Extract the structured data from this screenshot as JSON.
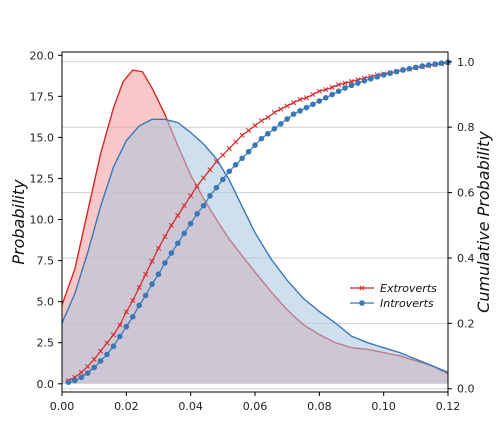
{
  "chart_data": {
    "type": "area",
    "title": "",
    "xlabel": "",
    "ylabel": "Probability",
    "y2label": "Cumulative Probability",
    "xlim": [
      0.0,
      0.12
    ],
    "ylim": [
      -0.5,
      20.2
    ],
    "y2lim": [
      -0.01,
      1.03
    ],
    "grid": "horizontal, right axis",
    "x_ticks": [
      "0.00",
      "0.02",
      "0.04",
      "0.06",
      "0.08",
      "0.10",
      "0.12"
    ],
    "y_ticks": [
      "0.0",
      "2.5",
      "5.0",
      "7.5",
      "10.0",
      "12.5",
      "15.0",
      "17.5",
      "20.0"
    ],
    "y2_ticks": [
      "0.0",
      "0.2",
      "0.4",
      "0.6",
      "0.8",
      "1.0"
    ],
    "legend": {
      "placement": "center-right",
      "entries": [
        "Extroverts",
        "Introverts"
      ]
    },
    "density_series": [
      {
        "name": "Extroverts",
        "color": "#d62728",
        "fill": "#f4a3a3",
        "points": [
          [
            0.0,
            4.8
          ],
          [
            0.004,
            7.0
          ],
          [
            0.008,
            10.5
          ],
          [
            0.012,
            14.0
          ],
          [
            0.016,
            16.8
          ],
          [
            0.019,
            18.4
          ],
          [
            0.022,
            19.1
          ],
          [
            0.025,
            19.0
          ],
          [
            0.028,
            18.0
          ],
          [
            0.032,
            16.4
          ],
          [
            0.036,
            14.5
          ],
          [
            0.04,
            12.7
          ],
          [
            0.044,
            11.3
          ],
          [
            0.048,
            10.0
          ],
          [
            0.052,
            8.8
          ],
          [
            0.056,
            7.8
          ],
          [
            0.06,
            6.8
          ],
          [
            0.065,
            5.6
          ],
          [
            0.07,
            4.5
          ],
          [
            0.075,
            3.6
          ],
          [
            0.08,
            3.0
          ],
          [
            0.085,
            2.5
          ],
          [
            0.09,
            2.2
          ],
          [
            0.095,
            2.1
          ],
          [
            0.1,
            1.9
          ],
          [
            0.105,
            1.7
          ],
          [
            0.11,
            1.4
          ],
          [
            0.115,
            1.1
          ],
          [
            0.12,
            0.6
          ]
        ]
      },
      {
        "name": "Introverts",
        "color": "#3a78b5",
        "fill": "#a9c4e0",
        "points": [
          [
            0.0,
            3.7
          ],
          [
            0.004,
            5.5
          ],
          [
            0.008,
            8.0
          ],
          [
            0.012,
            10.8
          ],
          [
            0.016,
            13.2
          ],
          [
            0.02,
            14.8
          ],
          [
            0.024,
            15.7
          ],
          [
            0.028,
            16.1
          ],
          [
            0.032,
            16.1
          ],
          [
            0.036,
            15.9
          ],
          [
            0.04,
            15.3
          ],
          [
            0.044,
            14.6
          ],
          [
            0.048,
            13.7
          ],
          [
            0.052,
            12.4
          ],
          [
            0.056,
            10.8
          ],
          [
            0.06,
            9.2
          ],
          [
            0.065,
            7.6
          ],
          [
            0.07,
            6.3
          ],
          [
            0.075,
            5.2
          ],
          [
            0.08,
            4.4
          ],
          [
            0.085,
            3.7
          ],
          [
            0.09,
            2.9
          ],
          [
            0.095,
            2.5
          ],
          [
            0.1,
            2.2
          ],
          [
            0.105,
            1.9
          ],
          [
            0.11,
            1.5
          ],
          [
            0.115,
            1.1
          ],
          [
            0.12,
            0.7
          ]
        ]
      }
    ],
    "cumulative_series": [
      {
        "name": "Extroverts",
        "color": "#d62728",
        "marker": "x",
        "x": [
          0.002,
          0.004,
          0.006,
          0.008,
          0.01,
          0.012,
          0.014,
          0.016,
          0.018,
          0.02,
          0.022,
          0.024,
          0.026,
          0.028,
          0.03,
          0.032,
          0.034,
          0.036,
          0.038,
          0.04,
          0.042,
          0.044,
          0.046,
          0.048,
          0.05,
          0.052,
          0.054,
          0.056,
          0.058,
          0.06,
          0.062,
          0.064,
          0.066,
          0.068,
          0.07,
          0.072,
          0.074,
          0.076,
          0.078,
          0.08,
          0.082,
          0.084,
          0.086,
          0.088,
          0.09,
          0.092,
          0.094,
          0.096,
          0.098,
          0.1,
          0.102,
          0.104,
          0.106,
          0.108,
          0.11,
          0.112,
          0.114,
          0.116,
          0.118,
          0.12
        ],
        "y": [
          0.025,
          0.035,
          0.05,
          0.068,
          0.09,
          0.115,
          0.14,
          0.165,
          0.195,
          0.235,
          0.27,
          0.31,
          0.35,
          0.39,
          0.43,
          0.465,
          0.5,
          0.53,
          0.56,
          0.59,
          0.62,
          0.645,
          0.67,
          0.695,
          0.715,
          0.735,
          0.755,
          0.775,
          0.79,
          0.805,
          0.82,
          0.83,
          0.845,
          0.855,
          0.865,
          0.875,
          0.885,
          0.89,
          0.9,
          0.91,
          0.915,
          0.922,
          0.93,
          0.935,
          0.94,
          0.945,
          0.95,
          0.955,
          0.96,
          0.963,
          0.967,
          0.97,
          0.975,
          0.978,
          0.982,
          0.985,
          0.988,
          0.991,
          0.994,
          0.997
        ]
      },
      {
        "name": "Introverts",
        "color": "#3a78b5",
        "marker": "o",
        "x": [
          0.002,
          0.004,
          0.006,
          0.008,
          0.01,
          0.012,
          0.014,
          0.016,
          0.018,
          0.02,
          0.022,
          0.024,
          0.026,
          0.028,
          0.03,
          0.032,
          0.034,
          0.036,
          0.038,
          0.04,
          0.042,
          0.044,
          0.046,
          0.048,
          0.05,
          0.052,
          0.054,
          0.056,
          0.058,
          0.06,
          0.062,
          0.064,
          0.066,
          0.068,
          0.07,
          0.072,
          0.074,
          0.076,
          0.078,
          0.08,
          0.082,
          0.084,
          0.086,
          0.088,
          0.09,
          0.092,
          0.094,
          0.096,
          0.098,
          0.1,
          0.102,
          0.104,
          0.106,
          0.108,
          0.11,
          0.112,
          0.114,
          0.116,
          0.118,
          0.12
        ],
        "y": [
          0.02,
          0.025,
          0.035,
          0.048,
          0.065,
          0.085,
          0.105,
          0.13,
          0.16,
          0.19,
          0.22,
          0.255,
          0.285,
          0.32,
          0.35,
          0.385,
          0.415,
          0.445,
          0.475,
          0.505,
          0.535,
          0.56,
          0.59,
          0.615,
          0.64,
          0.665,
          0.685,
          0.705,
          0.725,
          0.745,
          0.765,
          0.78,
          0.795,
          0.81,
          0.825,
          0.84,
          0.85,
          0.86,
          0.87,
          0.88,
          0.89,
          0.9,
          0.91,
          0.92,
          0.928,
          0.935,
          0.942,
          0.948,
          0.954,
          0.96,
          0.965,
          0.97,
          0.975,
          0.979,
          0.983,
          0.987,
          0.99,
          0.993,
          0.996,
          0.999
        ]
      }
    ]
  }
}
